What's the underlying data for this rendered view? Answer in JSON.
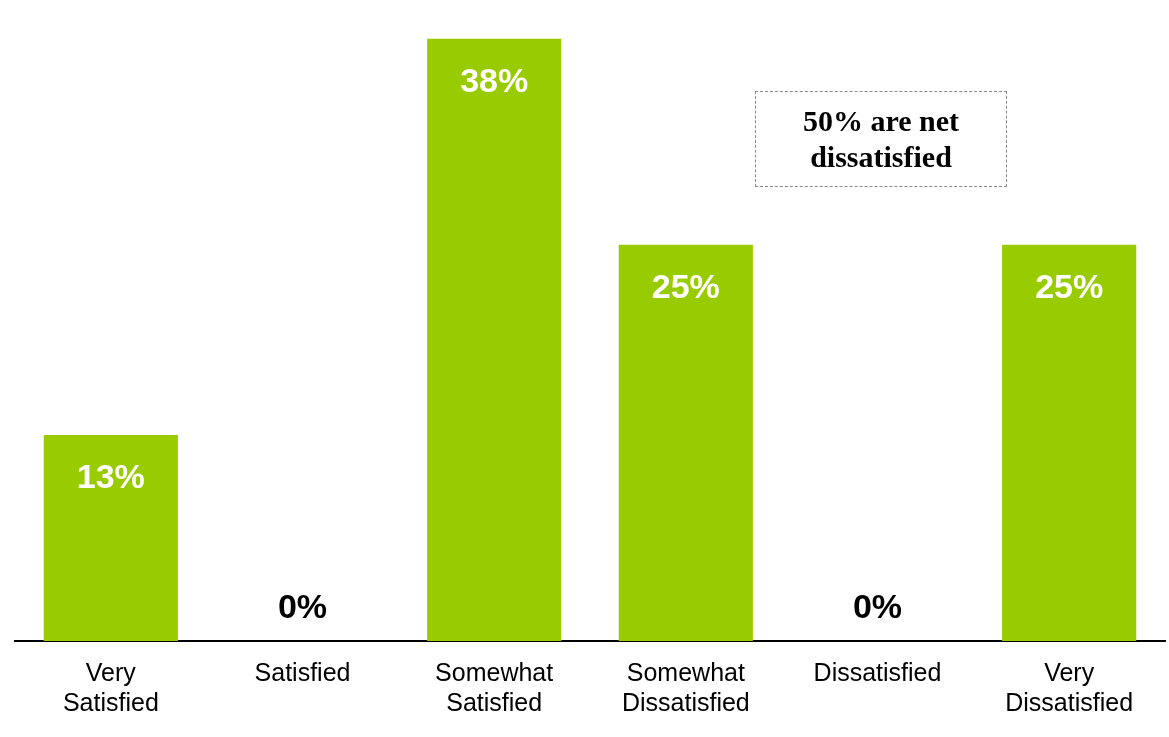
{
  "chart_data": {
    "type": "bar",
    "categories": [
      "Very Satisfied",
      "Satisfied",
      "Somewhat Satisfied",
      "Somewhat Dissatisfied",
      "Dissatisfied",
      "Very Dissatisfied"
    ],
    "values": [
      13,
      0,
      38,
      25,
      0,
      25
    ],
    "value_labels": [
      "13%",
      "0%",
      "38%",
      "25%",
      "0%",
      "25%"
    ],
    "color": "#99cc00",
    "grid": false,
    "legend": false,
    "annotations": [
      "50% are net dissatisfied"
    ]
  }
}
